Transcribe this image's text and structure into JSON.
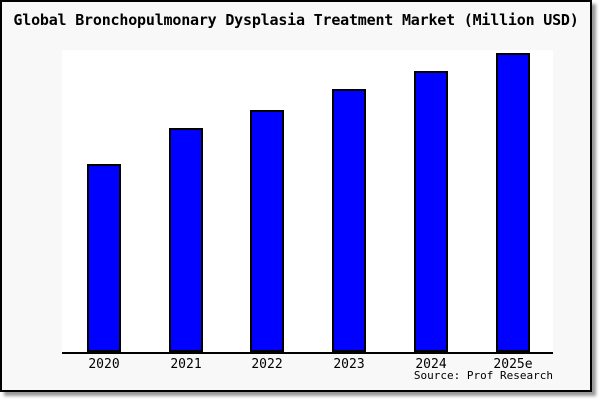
{
  "chart_data": {
    "type": "bar",
    "title": "Global Bronchopulmonary Dysplasia Treatment Market (Million USD)",
    "categories": [
      "2020",
      "2021",
      "2022",
      "2023",
      "2024",
      "2025e"
    ],
    "values": [
      63,
      75,
      81,
      88,
      94,
      100
    ],
    "xlabel": "",
    "ylabel": "",
    "ylim": [
      0,
      101
    ],
    "y_axis_visible": false,
    "grid": false,
    "legend": false,
    "note": "y-axis unlabeled in image; values estimated relative to tallest bar = 100",
    "bar_color": "#0000ff",
    "bar_border_color": "#000000"
  },
  "source": {
    "label": "Source: Prof Research"
  },
  "colors": {
    "figure_bg": "#f8f8f8",
    "plot_bg": "#ffffff",
    "frame": "#000000",
    "shadow": "#9a9a9a"
  }
}
